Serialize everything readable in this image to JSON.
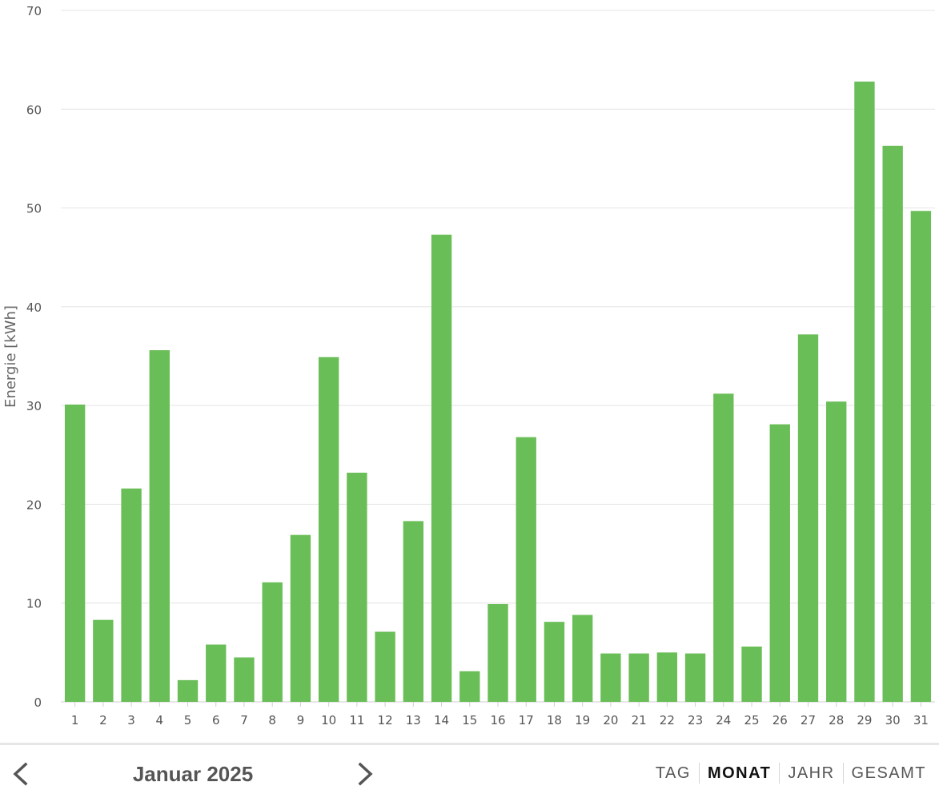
{
  "chart_data": {
    "type": "bar",
    "ylabel": "Energie [kWh]",
    "xlabel": "",
    "ylim": [
      0,
      70
    ],
    "yticks": [
      0,
      10,
      20,
      30,
      40,
      50,
      60,
      70
    ],
    "grid": true,
    "bar_color": "#6abe57",
    "categories": [
      "1",
      "2",
      "3",
      "4",
      "5",
      "6",
      "7",
      "8",
      "9",
      "10",
      "11",
      "12",
      "13",
      "14",
      "15",
      "16",
      "17",
      "18",
      "19",
      "20",
      "21",
      "22",
      "23",
      "24",
      "25",
      "26",
      "27",
      "28",
      "29",
      "30",
      "31"
    ],
    "values": [
      30.1,
      8.3,
      21.6,
      35.6,
      2.2,
      5.8,
      4.5,
      12.1,
      16.9,
      34.9,
      23.2,
      7.1,
      18.3,
      47.3,
      3.1,
      9.9,
      26.8,
      8.1,
      8.8,
      4.9,
      4.9,
      5.0,
      4.9,
      31.2,
      5.6,
      28.1,
      37.2,
      30.4,
      62.8,
      56.3,
      49.7
    ]
  },
  "footer": {
    "period_label": "Januar 2025",
    "prev_icon": "chevron-left-icon",
    "next_icon": "chevron-right-icon",
    "tabs": [
      {
        "label": "TAG",
        "active": false
      },
      {
        "label": "MONAT",
        "active": true
      },
      {
        "label": "JAHR",
        "active": false
      },
      {
        "label": "GESAMT",
        "active": false
      }
    ]
  }
}
